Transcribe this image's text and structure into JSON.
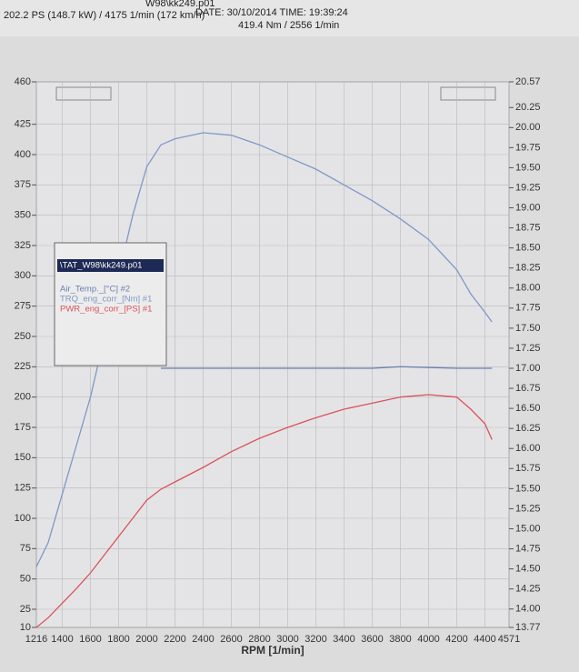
{
  "chart_data": {
    "type": "line",
    "file_name": "W98\\kk249.p01",
    "date": "DATE: 30/10/2014  TIME: 19:39:24",
    "title": "202.2 PS  (148.7 kW) / 4175 1/min (172 km/h)",
    "subtitle": "419.4 Nm / 2556 1/min",
    "x_label": "RPM  [1/min]",
    "legend_title": "\\TAT_W98\\kk249.p01",
    "grid": true,
    "x": [
      1216,
      1300,
      1400,
      1500,
      1600,
      1700,
      1800,
      1900,
      2000,
      2100,
      2200,
      2400,
      2600,
      2800,
      3000,
      3200,
      3400,
      3600,
      3800,
      4000,
      4200,
      4300,
      4400,
      4450
    ],
    "series": [
      {
        "name": "Air_Temp._[°C] #2",
        "color": "#6a7fb0",
        "axis": "y2",
        "values": [
          null,
          null,
          null,
          null,
          null,
          null,
          null,
          null,
          null,
          17,
          17,
          17,
          17,
          17,
          17,
          17,
          17,
          17,
          17.02,
          17.01,
          17,
          17,
          17,
          17
        ]
      },
      {
        "name": "TRQ_eng_corr_[Nm] #1",
        "color": "#7f98c8",
        "axis": "y",
        "values": [
          60,
          80,
          120,
          160,
          200,
          250,
          300,
          350,
          390,
          408,
          413,
          418,
          416,
          408,
          398,
          388,
          375,
          362,
          347,
          330,
          305,
          285,
          270,
          262
        ]
      },
      {
        "name": "PWR_eng_corr_[PS] #1",
        "color": "#d9535a",
        "axis": "y",
        "values": [
          10,
          18,
          30,
          42,
          55,
          70,
          85,
          100,
          115,
          124,
          130,
          142,
          155,
          166,
          175,
          183,
          190,
          195,
          200,
          202,
          200,
          190,
          178,
          165
        ]
      }
    ],
    "xlim": [
      1216,
      4571
    ],
    "xticks": [
      1216,
      1400,
      1600,
      1800,
      2000,
      2200,
      2400,
      2600,
      2800,
      3000,
      3200,
      3400,
      3600,
      3800,
      4000,
      4200,
      4400,
      4571
    ],
    "ylim": [
      10,
      460
    ],
    "yticks": [
      10,
      25,
      50,
      75,
      100,
      125,
      150,
      175,
      200,
      225,
      250,
      275,
      300,
      325,
      350,
      375,
      400,
      425,
      460
    ],
    "y2lim": [
      13.77,
      20.57
    ],
    "y2ticks": [
      13.77,
      {
        "value": 14,
        "label": "14.00"
      },
      14.25,
      {
        "value": 14.5,
        "label": "14.50"
      },
      14.75,
      {
        "value": 15,
        "label": "15.00"
      },
      15.25,
      {
        "value": 15.5,
        "label": "15.50"
      },
      15.75,
      {
        "value": 16,
        "label": "16.00"
      },
      16.25,
      {
        "value": 16.5,
        "label": "16.50"
      },
      16.75,
      {
        "value": 17,
        "label": "17.00"
      },
      17.25,
      {
        "value": 17.5,
        "label": "17.50"
      },
      17.75,
      {
        "value": 18,
        "label": "18.00"
      },
      18.25,
      {
        "value": 18.5,
        "label": "18.50"
      },
      18.75,
      {
        "value": 19,
        "label": "19.00"
      },
      19.25,
      {
        "value": 19.5,
        "label": "19.50"
      },
      19.75,
      {
        "value": 20,
        "label": "20.00"
      },
      20.25,
      20.57
    ]
  }
}
